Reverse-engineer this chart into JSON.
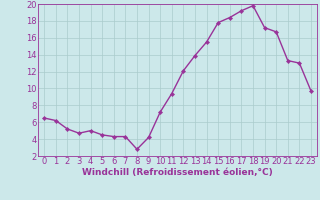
{
  "x": [
    0,
    1,
    2,
    3,
    4,
    5,
    6,
    7,
    8,
    9,
    10,
    11,
    12,
    13,
    14,
    15,
    16,
    17,
    18,
    19,
    20,
    21,
    22,
    23
  ],
  "y": [
    6.5,
    6.2,
    5.2,
    4.7,
    5.0,
    4.5,
    4.3,
    4.3,
    2.8,
    4.2,
    7.2,
    9.4,
    12.1,
    13.9,
    15.5,
    17.8,
    18.4,
    19.2,
    19.8,
    17.2,
    16.7,
    13.3,
    13.0,
    9.7
  ],
  "line_color": "#993399",
  "marker": "D",
  "marker_size": 2.2,
  "line_width": 1.0,
  "bg_color": "#cce8ea",
  "grid_color": "#aacccc",
  "xlabel": "Windchill (Refroidissement éolien,°C)",
  "xlabel_color": "#993399",
  "tick_color": "#993399",
  "ylim": [
    2,
    20
  ],
  "xlim": [
    -0.5,
    23.5
  ],
  "yticks": [
    2,
    4,
    6,
    8,
    10,
    12,
    14,
    16,
    18,
    20
  ],
  "xticks": [
    0,
    1,
    2,
    3,
    4,
    5,
    6,
    7,
    8,
    9,
    10,
    11,
    12,
    13,
    14,
    15,
    16,
    17,
    18,
    19,
    20,
    21,
    22,
    23
  ],
  "font_size_label": 6.5,
  "font_size_tick": 6.0
}
